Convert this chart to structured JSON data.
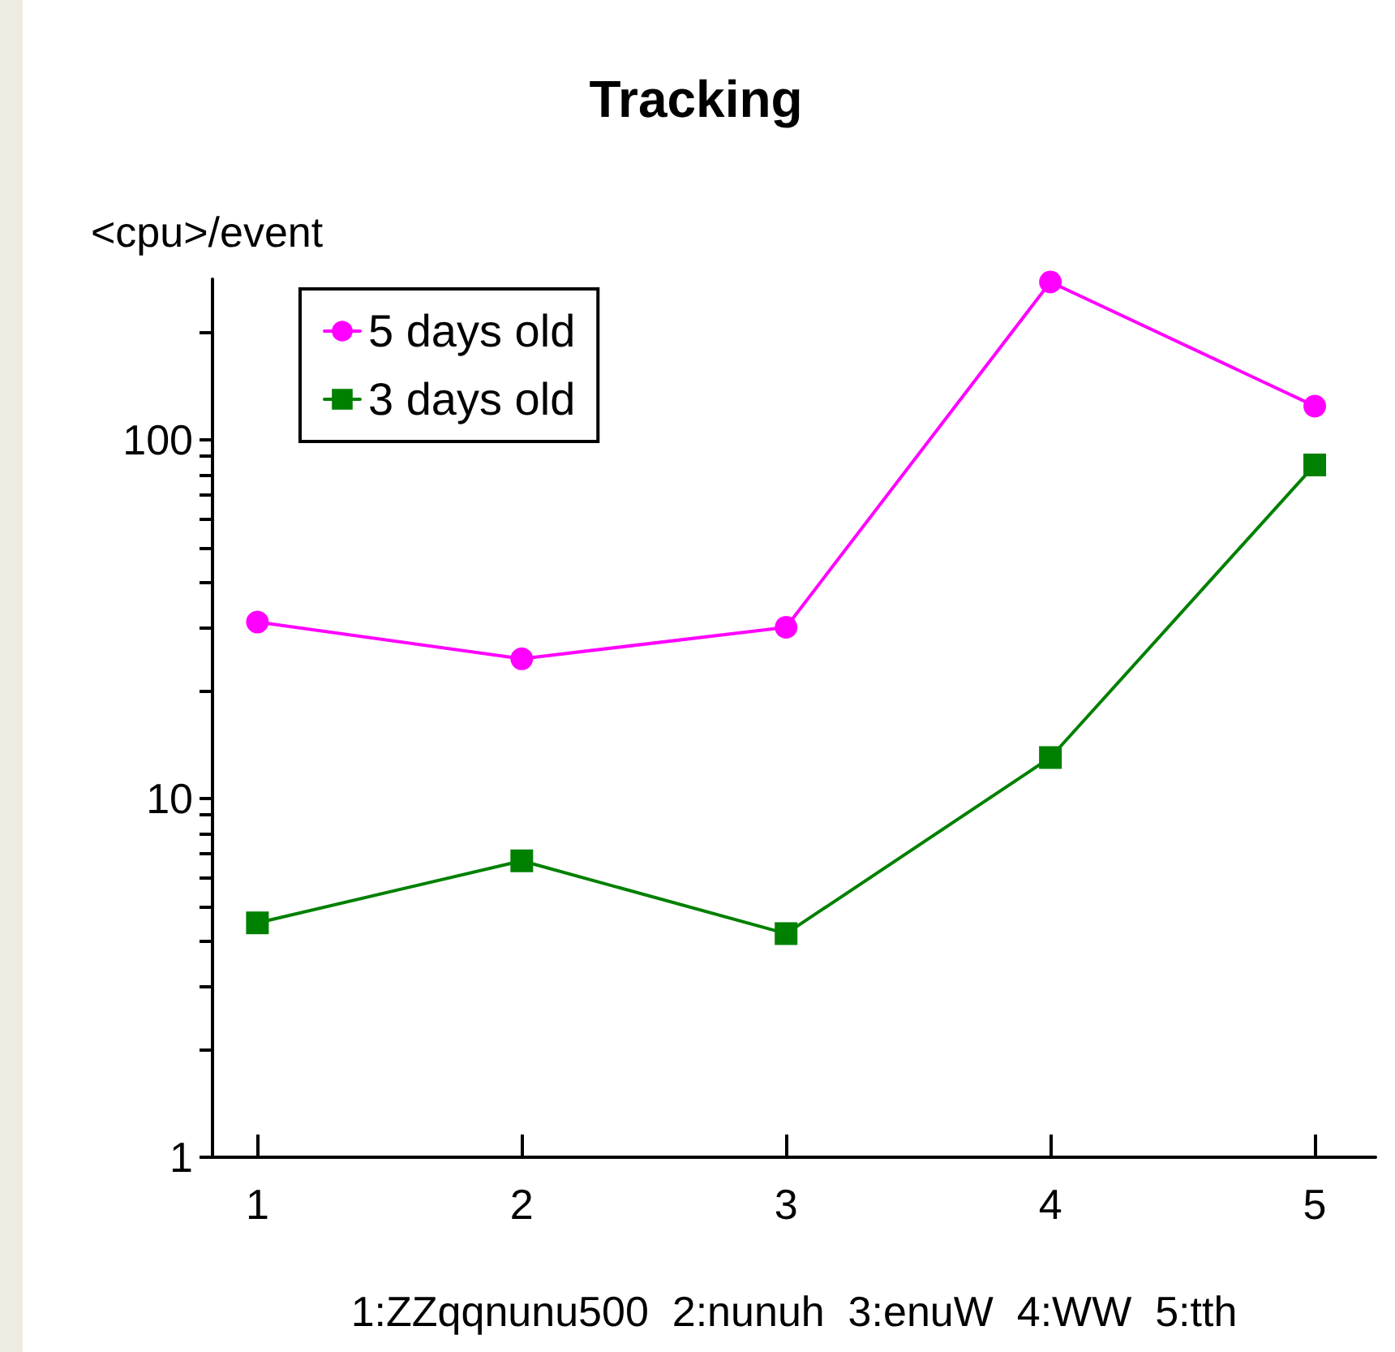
{
  "chart_data": {
    "type": "line",
    "title": "Tracking",
    "xlabel": "1:ZZqqnunu500  2:nunuh  3:enuW  4:WW  5:tth",
    "ylabel": "<cpu>/event",
    "x": [
      1,
      2,
      3,
      4,
      5
    ],
    "series": [
      {
        "name": "5 days old",
        "color": "#ff00ff",
        "marker": "circle",
        "values": [
          31,
          24.5,
          30,
          275,
          124
        ]
      },
      {
        "name": "3 days old",
        "color": "#008000",
        "marker": "square",
        "values": [
          4.5,
          6.7,
          4.2,
          13,
          85
        ]
      }
    ],
    "log": "y",
    "xlim": [
      0.83,
      5.23
    ],
    "xticks": [
      1,
      2,
      3,
      4,
      5
    ],
    "ylim": [
      1,
      280
    ],
    "yticks": [
      1,
      {
        "value": 2,
        "label": null
      },
      {
        "value": 3,
        "label": null
      },
      {
        "value": 4,
        "label": null
      },
      {
        "value": 5,
        "label": null
      },
      {
        "value": 6,
        "label": null
      },
      {
        "value": 7,
        "label": null
      },
      {
        "value": 8,
        "label": null
      },
      {
        "value": 9,
        "label": null
      },
      10,
      {
        "value": 20,
        "label": null
      },
      {
        "value": 30,
        "label": null
      },
      {
        "value": 40,
        "label": null
      },
      {
        "value": 50,
        "label": null
      },
      {
        "value": 60,
        "label": null
      },
      {
        "value": 70,
        "label": null
      },
      {
        "value": 80,
        "label": null
      },
      {
        "value": 90,
        "label": null
      },
      100,
      {
        "value": 200,
        "label": null
      }
    ],
    "grid": false,
    "legend": "top left",
    "line_style": "solid"
  }
}
